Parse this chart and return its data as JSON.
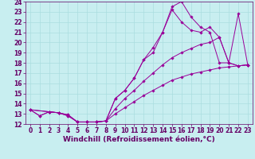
{
  "xlabel": "Windchill (Refroidissement éolien,°C)",
  "background_color": "#c8eef0",
  "grid_color": "#aadddf",
  "line_color": "#990099",
  "xlim": [
    -0.5,
    23.5
  ],
  "ylim": [
    12,
    24
  ],
  "xticks": [
    0,
    1,
    2,
    3,
    4,
    5,
    6,
    7,
    8,
    9,
    10,
    11,
    12,
    13,
    14,
    15,
    16,
    17,
    18,
    19,
    20,
    21,
    22,
    23
  ],
  "yticks": [
    12,
    13,
    14,
    15,
    16,
    17,
    18,
    19,
    20,
    21,
    22,
    23,
    24
  ],
  "lines": [
    {
      "x": [
        0,
        1,
        2,
        3,
        4,
        5,
        6,
        7,
        8,
        9,
        10,
        11,
        12,
        13,
        14,
        15,
        16,
        17,
        18,
        19,
        20,
        21,
        22,
        23
      ],
      "y": [
        13.4,
        12.8,
        13.2,
        13.1,
        12.9,
        12.2,
        12.2,
        12.2,
        12.3,
        13.0,
        13.6,
        14.2,
        14.8,
        15.3,
        15.8,
        16.3,
        16.6,
        16.9,
        17.1,
        17.3,
        17.5,
        17.6,
        17.7,
        17.8
      ]
    },
    {
      "x": [
        0,
        1,
        2,
        3,
        4,
        5,
        6,
        7,
        8,
        9,
        10,
        11,
        12,
        13,
        14,
        15,
        16,
        17,
        18,
        19,
        20,
        21,
        22,
        23
      ],
      "y": [
        13.4,
        12.8,
        13.2,
        13.1,
        12.9,
        12.2,
        12.2,
        12.2,
        12.3,
        13.5,
        14.5,
        15.3,
        16.2,
        17.0,
        17.8,
        18.5,
        19.0,
        19.4,
        19.8,
        20.0,
        20.5,
        18.0,
        17.7,
        17.8
      ]
    },
    {
      "x": [
        0,
        2,
        3,
        4,
        5,
        6,
        7,
        8,
        9,
        10,
        11,
        12,
        13,
        14,
        15,
        16,
        17,
        18,
        19,
        20,
        21,
        22,
        23
      ],
      "y": [
        13.4,
        13.2,
        13.1,
        12.8,
        12.2,
        12.2,
        12.2,
        12.3,
        14.5,
        15.3,
        16.5,
        18.3,
        19.0,
        21.0,
        23.2,
        22.0,
        21.2,
        21.0,
        21.5,
        20.5,
        18.0,
        17.7,
        17.8
      ]
    },
    {
      "x": [
        0,
        2,
        3,
        4,
        5,
        6,
        7,
        8,
        9,
        10,
        11,
        12,
        13,
        14,
        15,
        16,
        17,
        18,
        19,
        20,
        21,
        22,
        23
      ],
      "y": [
        13.4,
        13.2,
        13.1,
        12.8,
        12.2,
        12.2,
        12.2,
        12.3,
        14.5,
        15.3,
        16.5,
        18.3,
        19.5,
        21.0,
        23.5,
        24.0,
        22.5,
        21.5,
        21.0,
        18.0,
        18.0,
        22.8,
        17.8
      ]
    }
  ],
  "font_color": "#660066",
  "tick_fontsize": 5.5,
  "label_fontsize": 6.5
}
